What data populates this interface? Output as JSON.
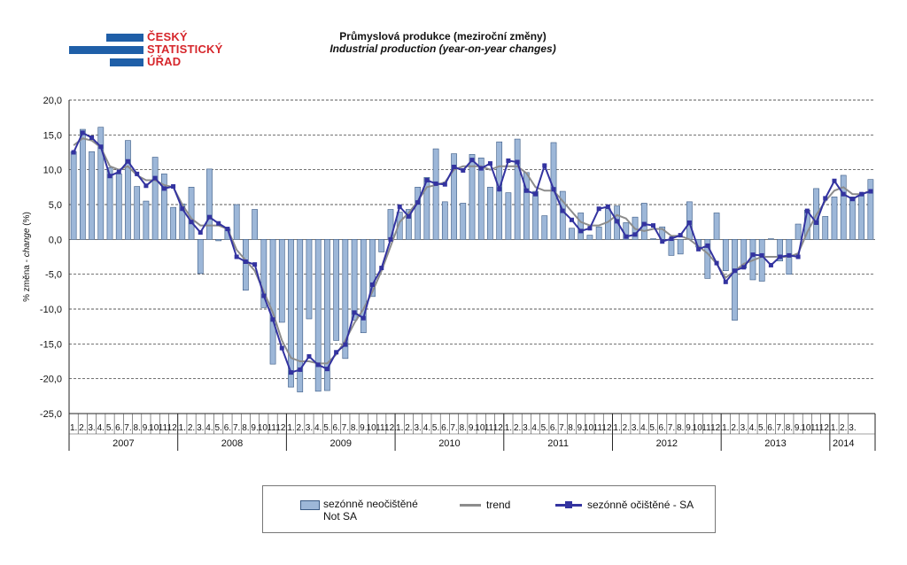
{
  "logo": {
    "words": [
      "ČESKÝ",
      "STATISTICKÝ",
      "ÚŘAD"
    ],
    "color": "#d6262b",
    "bar_color": "#1f5fa8"
  },
  "header": {
    "title_cs": "Průmyslová produkce (meziroční změny)",
    "title_en": "Industrial production (year-on-year changes)"
  },
  "chart_data": {
    "type": "bar",
    "title": "Průmyslová produkce (meziroční změny)",
    "subtitle": "Industrial production (year-on-year changes)",
    "ylabel_cs": "% změna - ",
    "ylabel_en": "change",
    "ylabel_unit": " (%)",
    "ylim": [
      -25,
      20
    ],
    "yticks": [
      "20,0",
      "15,0",
      "10,0",
      "5,0",
      "0,0",
      "-5,0",
      "-10,0",
      "-15,0",
      "-20,0",
      "-25,0"
    ],
    "ytick_values": [
      20,
      15,
      10,
      5,
      0,
      -5,
      -10,
      -15,
      -20,
      -25
    ],
    "grid": "horizontal-dashed",
    "legend_position": "bottom",
    "years": [
      {
        "label": "2007",
        "months": 12
      },
      {
        "label": "2008",
        "months": 12
      },
      {
        "label": "2009",
        "months": 12
      },
      {
        "label": "2010",
        "months": 12
      },
      {
        "label": "2011",
        "months": 12
      },
      {
        "label": "2012",
        "months": 12
      },
      {
        "label": "2013",
        "months": 12
      },
      {
        "label": "2014",
        "months": 3
      }
    ],
    "month_labels": [
      "1.",
      "2.",
      "3.",
      "4.",
      "5.",
      "6.",
      "7.",
      "8.",
      "9.",
      "10.",
      "11.",
      "12."
    ],
    "series": [
      {
        "name": "sezónně neočištěné",
        "name_en": "Not SA",
        "kind": "bar",
        "color": "#9db7d8",
        "values": [
          12.6,
          15.8,
          12.6,
          16.1,
          10.3,
          9.4,
          14.2,
          7.6,
          5.5,
          11.8,
          9.4,
          4.6,
          5.1,
          7.5,
          -4.9,
          10.1,
          -0.2,
          1.5,
          5.0,
          -7.3,
          4.3,
          -9.8,
          -17.9,
          -11.9,
          -21.2,
          -21.9,
          -11.4,
          -21.8,
          -21.7,
          -14.5,
          -17.1,
          -11.6,
          -13.4,
          -8.2,
          -1.8,
          4.3,
          3.9,
          4.3,
          7.5,
          8.9,
          13.0,
          5.4,
          12.3,
          5.2,
          12.2,
          11.7,
          7.5,
          14.0,
          6.7,
          14.4,
          9.6,
          6.9,
          3.4,
          13.9,
          6.9,
          1.6,
          3.8,
          0.6,
          1.8,
          4.4,
          4.8,
          2.4,
          3.2,
          5.2,
          0.1,
          1.8,
          -2.3,
          -2.1,
          5.4,
          -1.1,
          -5.6,
          3.8,
          -4.5,
          -11.6,
          -4.1,
          -5.8,
          -6.0,
          0.1,
          -3.1,
          -5.0,
          2.2,
          4.2,
          7.3,
          3.3,
          6.1,
          9.2,
          6.1,
          6.5,
          8.6
        ]
      },
      {
        "name": "trend",
        "kind": "line",
        "color": "#8c8c8c",
        "values": [
          13.5,
          14.5,
          14.2,
          13.2,
          10.5,
          10.0,
          10.5,
          9.2,
          8.5,
          8.5,
          7.8,
          7.5,
          5.0,
          3.0,
          2.0,
          2.0,
          2.0,
          1.5,
          -1.5,
          -3.0,
          -4.5,
          -7.5,
          -10.5,
          -14.5,
          -17.0,
          -17.5,
          -17.5,
          -17.8,
          -17.8,
          -16.5,
          -14.5,
          -12.0,
          -10.0,
          -7.5,
          -4.5,
          -1.0,
          2.5,
          3.8,
          5.5,
          7.5,
          7.8,
          8.2,
          10.0,
          10.5,
          10.5,
          10.5,
          10.0,
          10.5,
          10.5,
          10.5,
          9.5,
          7.5,
          7.0,
          7.0,
          5.5,
          4.0,
          2.5,
          2.0,
          2.0,
          2.5,
          3.5,
          3.0,
          1.5,
          1.2,
          1.5,
          1.5,
          0.5,
          0.5,
          0.0,
          -1.0,
          -2.0,
          -3.5,
          -5.5,
          -4.5,
          -3.5,
          -3.0,
          -2.5,
          -2.5,
          -2.5,
          -2.5,
          -2.0,
          1.0,
          3.5,
          5.5,
          7.0,
          7.5,
          6.5,
          6.5,
          7.0
        ]
      },
      {
        "name": "sezónně očištěné - SA",
        "kind": "line-marker",
        "color": "#3333a0",
        "values": [
          12.5,
          15.3,
          14.6,
          13.3,
          9.1,
          9.7,
          11.2,
          9.4,
          7.7,
          8.8,
          7.3,
          7.6,
          4.4,
          2.5,
          1.0,
          3.2,
          2.3,
          1.5,
          -2.5,
          -3.2,
          -3.6,
          -8.1,
          -11.5,
          -15.6,
          -19.1,
          -18.7,
          -16.8,
          -18.0,
          -18.6,
          -16.2,
          -15.1,
          -10.5,
          -11.3,
          -6.5,
          -4.1,
          0.0,
          4.7,
          3.3,
          5.3,
          8.5,
          8.0,
          7.9,
          10.4,
          9.9,
          11.4,
          10.2,
          10.9,
          7.2,
          11.3,
          11.1,
          7.0,
          6.5,
          10.6,
          7.2,
          4.1,
          2.8,
          1.2,
          1.6,
          4.4,
          4.7,
          2.6,
          0.4,
          0.7,
          2.2,
          2.0,
          -0.3,
          0.1,
          0.6,
          2.4,
          -1.4,
          -0.9,
          -3.4,
          -6.1,
          -4.5,
          -4.0,
          -2.2,
          -2.3,
          -3.7,
          -2.5,
          -2.3,
          -2.5,
          4.1,
          2.4,
          5.9,
          8.4,
          6.5,
          5.8,
          6.5,
          6.9
        ]
      }
    ]
  },
  "legend": {
    "items": [
      {
        "label": "sezónně neočištěné",
        "label2": "Not SA"
      },
      {
        "label": "trend"
      },
      {
        "label": "sezónně očištěné - SA"
      }
    ]
  }
}
